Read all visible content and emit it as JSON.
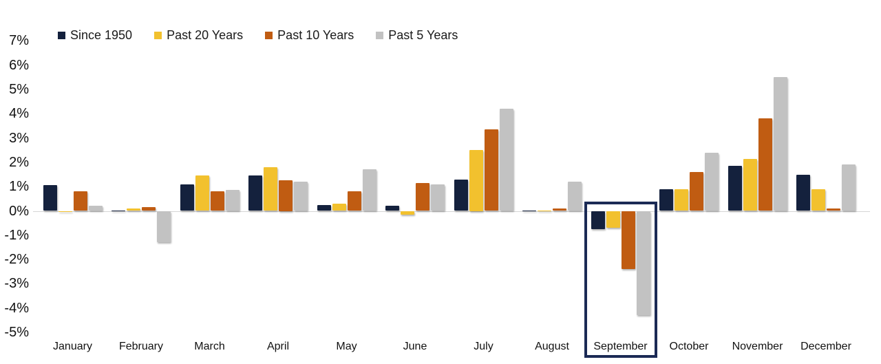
{
  "chart_data": {
    "type": "bar",
    "title": "",
    "categories": [
      "January",
      "February",
      "March",
      "April",
      "May",
      "June",
      "July",
      "August",
      "September",
      "October",
      "November",
      "December"
    ],
    "series": [
      {
        "name": "Since 1950",
        "color": "#14213D",
        "values": [
          1.05,
          0.0,
          1.1,
          1.45,
          0.25,
          0.2,
          1.3,
          0.0,
          -0.75,
          0.9,
          1.85,
          1.5
        ]
      },
      {
        "name": "Past 20 Years",
        "color": "#F2C12E",
        "values": [
          -0.05,
          0.1,
          1.45,
          1.8,
          0.3,
          -0.15,
          2.5,
          0.0,
          -0.7,
          0.9,
          2.15,
          0.9
        ]
      },
      {
        "name": "Past 10 Years",
        "color": "#C05C12",
        "values": [
          0.8,
          0.15,
          0.8,
          1.25,
          0.8,
          1.15,
          3.35,
          0.1,
          -2.4,
          1.6,
          3.8,
          0.1
        ]
      },
      {
        "name": "Past 5 Years",
        "color": "#C2C2C2",
        "values": [
          0.2,
          -1.3,
          0.85,
          1.2,
          1.7,
          1.1,
          4.2,
          1.2,
          -4.3,
          2.4,
          5.5,
          1.9
        ]
      }
    ],
    "ylabel": "",
    "xlabel": "",
    "ylim": [
      -5,
      7
    ],
    "ytick_step": 1,
    "ytick_suffix": "%",
    "grid": false,
    "legend_position": "top-left",
    "axis_line_color": "#d6d6d6",
    "highlight": {
      "category": "September",
      "border_color": "#1B2A55",
      "border_width": 4
    }
  }
}
